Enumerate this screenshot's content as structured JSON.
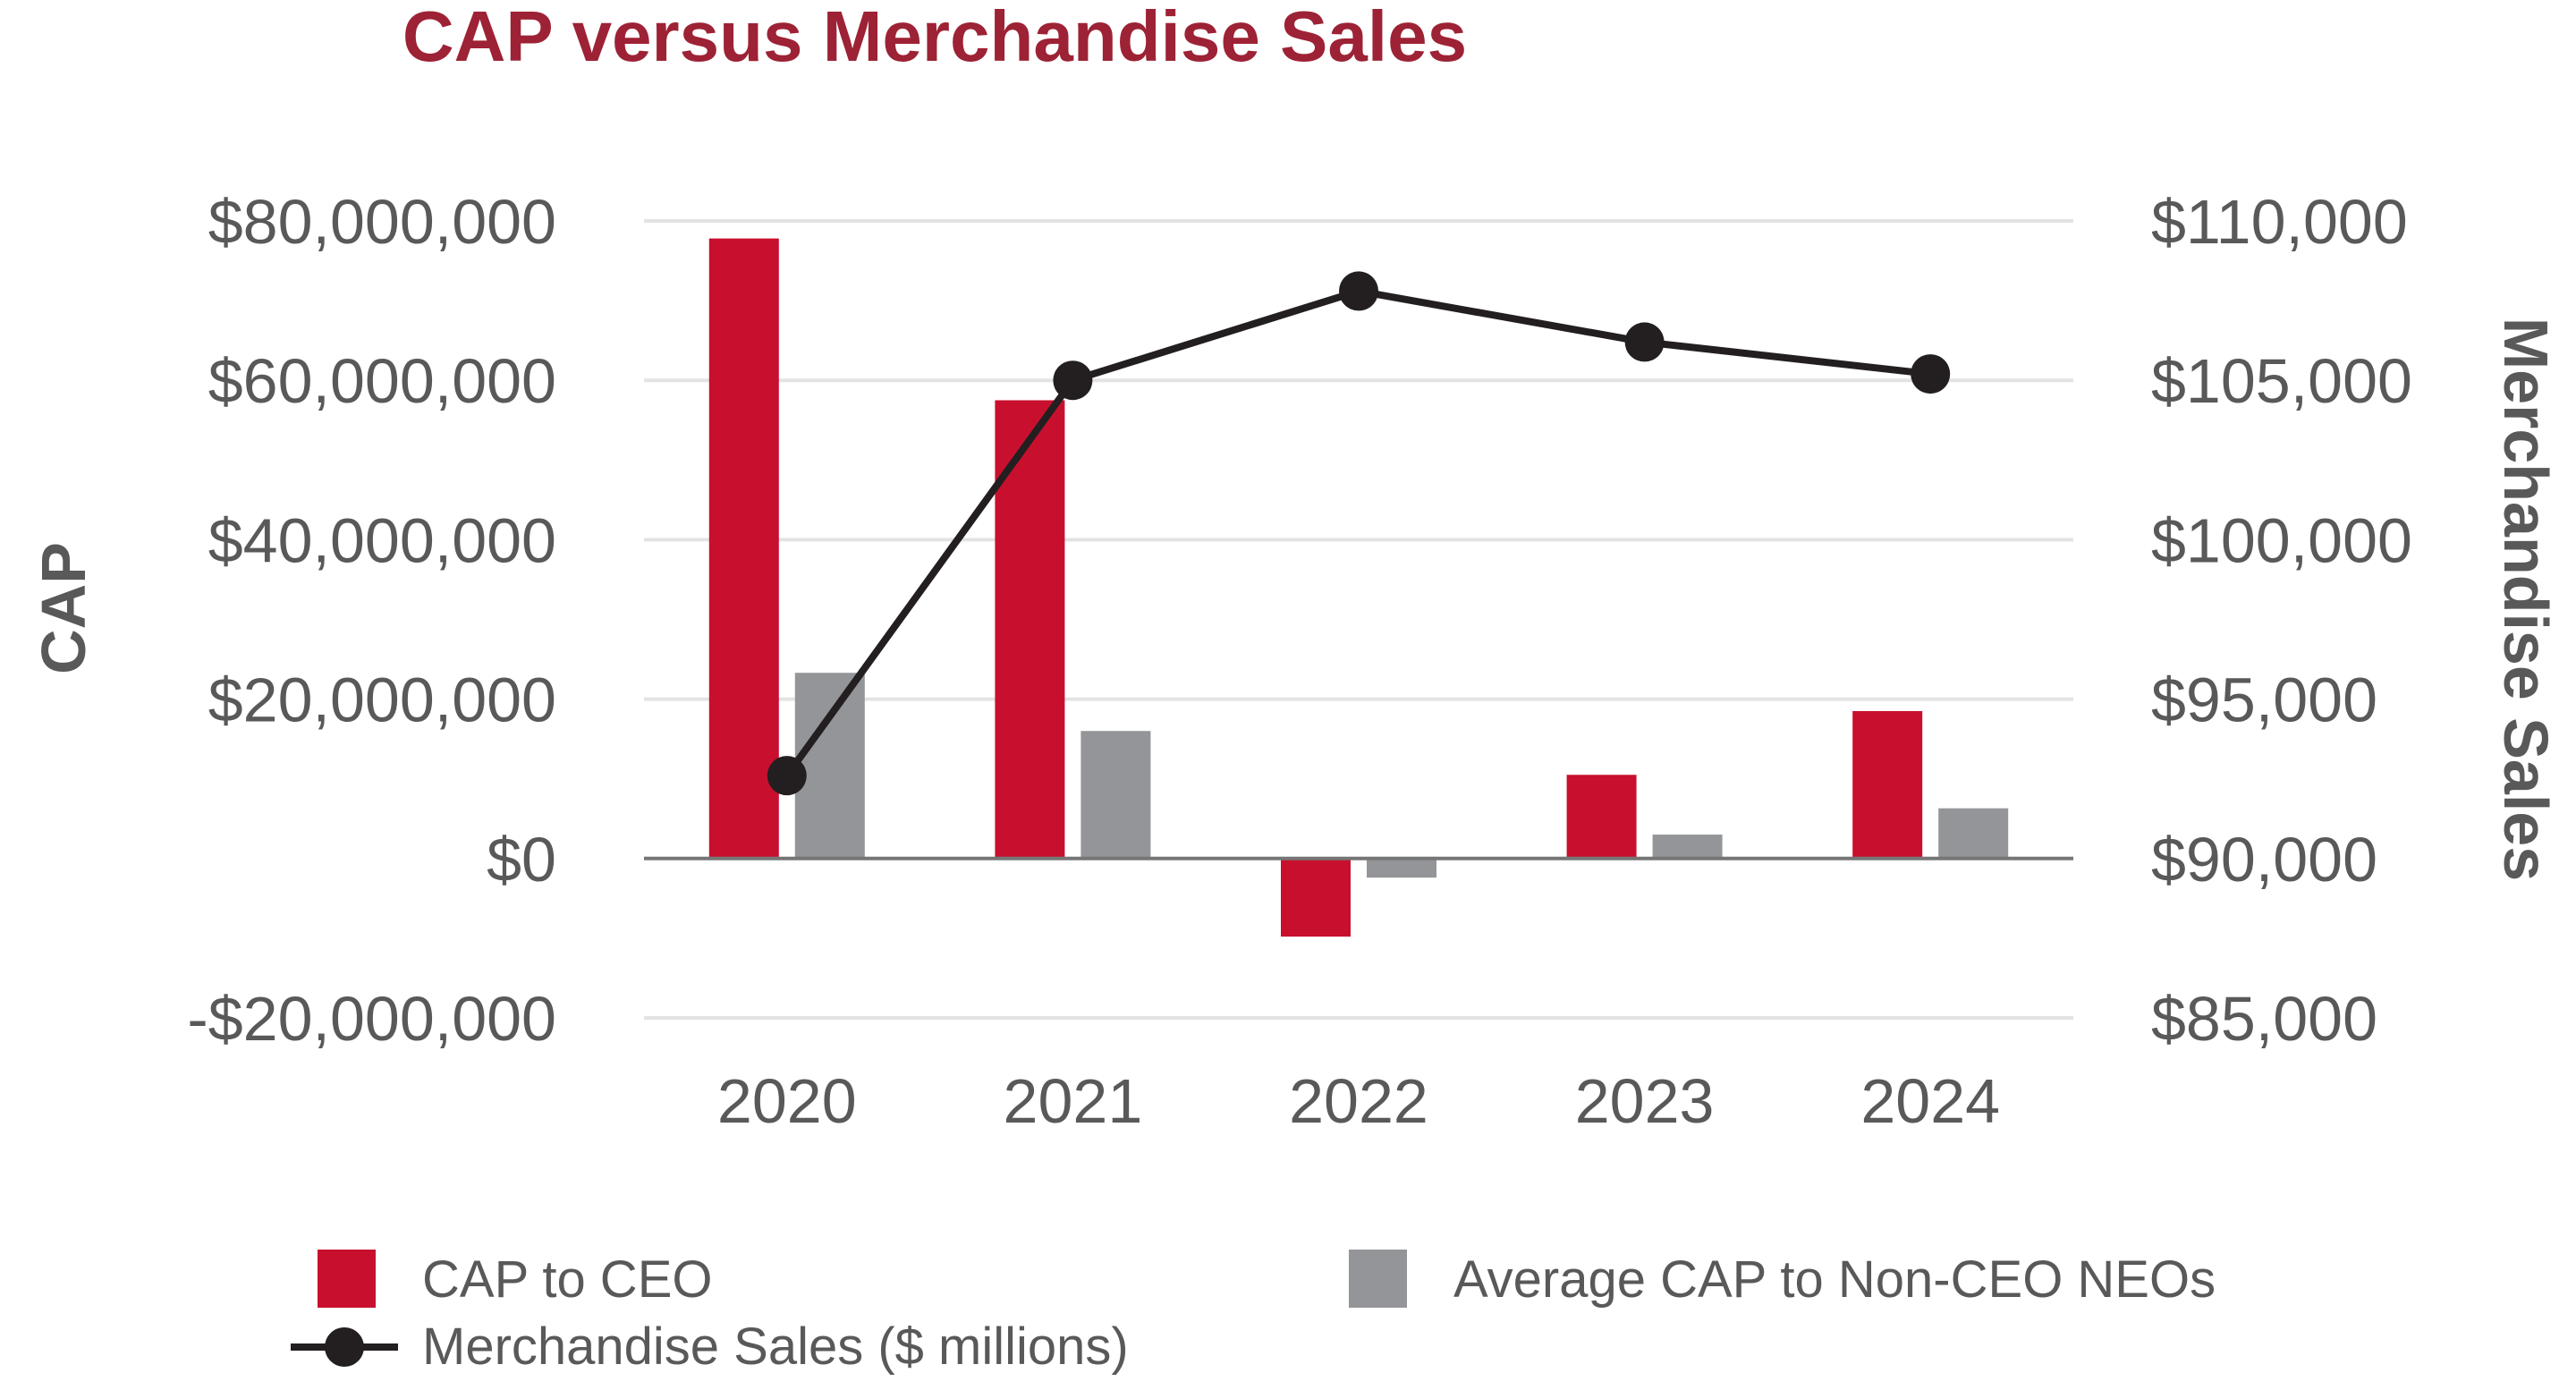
{
  "chart_data": {
    "type": "bar",
    "title": "CAP versus Merchandise Sales",
    "categories": [
      "2020",
      "2021",
      "2022",
      "2023",
      "2024"
    ],
    "ylabel": "CAP",
    "y2label": "Merchandise Sales",
    "ylim": [
      -20000000,
      80000000
    ],
    "y_ticks": [
      -20000000,
      0,
      20000000,
      40000000,
      60000000,
      80000000
    ],
    "y_tick_labels": [
      "-$20,000,000",
      "$0",
      "$20,000,000",
      "$40,000,000",
      "$60,000,000",
      "$80,000,000"
    ],
    "y2lim": [
      85000,
      110000
    ],
    "y2_ticks": [
      85000,
      90000,
      95000,
      100000,
      105000,
      110000
    ],
    "y2_tick_labels": [
      "$85,000",
      "$90,000",
      "$95,000",
      "$100,000",
      "$105,000",
      "$110,000"
    ],
    "grid": true,
    "legend_position": "bottom",
    "series": [
      {
        "name": "CAP to CEO",
        "type": "bar",
        "axis": "left",
        "color": "#C8102E",
        "values": [
          77800000,
          57500000,
          -9800000,
          10500000,
          18500000
        ]
      },
      {
        "name": "Average CAP to Non-CEO NEOs",
        "type": "bar",
        "axis": "left",
        "color": "#939598",
        "values": [
          23300000,
          16000000,
          -2400000,
          3000000,
          6300000
        ]
      },
      {
        "name": "Merchandise Sales ($ millions)",
        "type": "line",
        "axis": "right",
        "color": "#231F20",
        "values": [
          92600,
          105000,
          107800,
          106200,
          105200
        ]
      }
    ],
    "title_color": "#9D2235",
    "grid_color": "#E3E3E3",
    "baseline_color": "#767676"
  }
}
